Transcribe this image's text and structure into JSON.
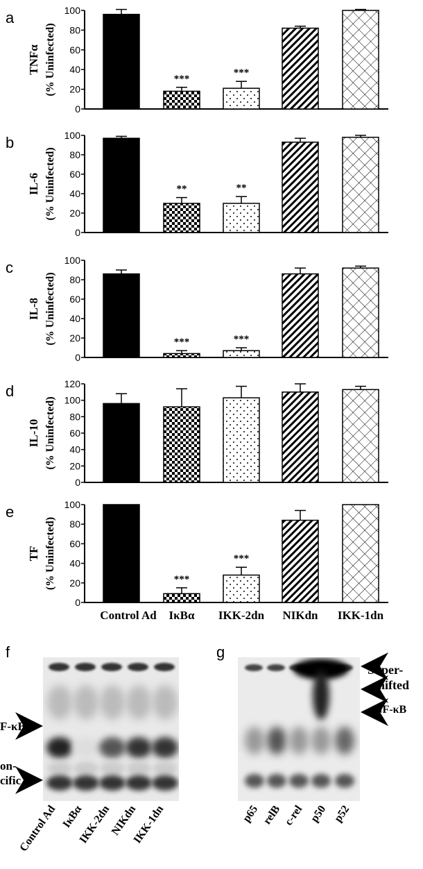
{
  "figure": {
    "panel_labels": [
      "a",
      "b",
      "c",
      "d",
      "e",
      "f",
      "g"
    ],
    "categories": [
      "Control Ad",
      "IκBα",
      "IKK-2dn",
      "NIKdn",
      "IKK-1dn"
    ],
    "patterns": [
      "solid",
      "checker",
      "dots",
      "diag",
      "crosshatch"
    ]
  },
  "chart_data": [
    {
      "type": "bar",
      "panel": "a",
      "ylabel_main": "TNFα",
      "ylabel_sub": "(% Uninfected)",
      "ylim": [
        0,
        100
      ],
      "yticks": [
        "0",
        "20",
        "40",
        "60",
        "80",
        "100"
      ],
      "categories": [
        "Control Ad",
        "IκBα",
        "IKK-2dn",
        "NIKdn",
        "IKK-1dn"
      ],
      "values": [
        96,
        18,
        21,
        82,
        100
      ],
      "errors": [
        5,
        4,
        7,
        2,
        1
      ],
      "significance": [
        "",
        "***",
        "***",
        "",
        ""
      ]
    },
    {
      "type": "bar",
      "panel": "b",
      "ylabel_main": "IL-6",
      "ylabel_sub": "(% Uninfected)",
      "ylim": [
        0,
        100
      ],
      "yticks": [
        "0",
        "20",
        "40",
        "60",
        "80",
        "100"
      ],
      "categories": [
        "Control Ad",
        "IκBα",
        "IKK-2dn",
        "NIKdn",
        "IKK-1dn"
      ],
      "values": [
        97,
        30,
        30,
        93,
        98
      ],
      "errors": [
        2,
        6,
        7,
        4,
        2
      ],
      "significance": [
        "",
        "**",
        "**",
        "",
        ""
      ]
    },
    {
      "type": "bar",
      "panel": "c",
      "ylabel_main": "IL-8",
      "ylabel_sub": "(% Uninfected)",
      "ylim": [
        0,
        100
      ],
      "yticks": [
        "0",
        "20",
        "40",
        "60",
        "80",
        "100"
      ],
      "categories": [
        "Control Ad",
        "IκBα",
        "IKK-2dn",
        "NIKdn",
        "IKK-1dn"
      ],
      "values": [
        86,
        4,
        7,
        86,
        92
      ],
      "errors": [
        4,
        3,
        3,
        6,
        2
      ],
      "significance": [
        "",
        "***",
        "***",
        "",
        ""
      ]
    },
    {
      "type": "bar",
      "panel": "d",
      "ylabel_main": "IL-10",
      "ylabel_sub": "(% Uninfected)",
      "ylim": [
        0,
        120
      ],
      "yticks": [
        "0",
        "20",
        "40",
        "60",
        "80",
        "100",
        "120"
      ],
      "categories": [
        "Control Ad",
        "IκBα",
        "IKK-2dn",
        "NIKdn",
        "IKK-1dn"
      ],
      "values": [
        96,
        92,
        103,
        110,
        113
      ],
      "errors": [
        12,
        22,
        14,
        10,
        4
      ],
      "significance": [
        "",
        "",
        "",
        "",
        ""
      ]
    },
    {
      "type": "bar",
      "panel": "e",
      "ylabel_main": "TF",
      "ylabel_sub": "(% Uninfected)",
      "ylim": [
        0,
        100
      ],
      "yticks": [
        "0",
        "20",
        "40",
        "60",
        "80",
        "100"
      ],
      "categories": [
        "Control Ad",
        "IκBα",
        "IKK-2dn",
        "NIKdn",
        "IKK-1dn"
      ],
      "values": [
        100,
        9,
        28,
        84,
        100
      ],
      "errors": [
        0,
        6,
        8,
        10,
        0
      ],
      "significance": [
        "",
        "***",
        "***",
        "",
        ""
      ]
    }
  ],
  "gel_f": {
    "label": "f",
    "lanes": [
      "Control Ad",
      "IκBα",
      "IKK-2dn",
      "NIKdn",
      "IKK-1dn"
    ],
    "arrow_labels": [
      "NF-κB",
      "Non-\nspecific"
    ],
    "arrow_label_visible": [
      "F-κB",
      "on-\ncific"
    ]
  },
  "gel_g": {
    "label": "g",
    "lanes": [
      "p65",
      "relB",
      "c-rel",
      "p50",
      "p52"
    ],
    "arrow_labels": [
      "Super-\nshifted",
      "NF-κB"
    ]
  }
}
